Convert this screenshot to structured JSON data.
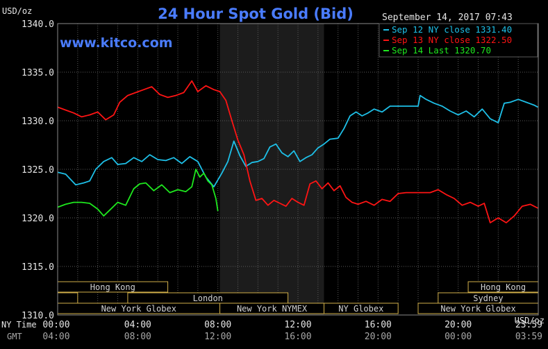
{
  "chart_data": {
    "type": "line",
    "title": "24 Hour Spot Gold (Bid)",
    "brand": "www.kitco.com",
    "unit_top": "USD/oz",
    "unit_bottom": "USD/oz",
    "timestamp": "September 14, 2017 07:43",
    "ylim": [
      1310,
      1340
    ],
    "y_ticks": [
      "1340.0",
      "1335.0",
      "1330.0",
      "1325.0",
      "1320.0",
      "1315.0",
      "1310.0"
    ],
    "y_tick_values": [
      1340,
      1335,
      1330,
      1325,
      1320,
      1315,
      1310
    ],
    "x_row_labels": [
      "NY Time",
      "GMT"
    ],
    "x_ticks_ny": [
      "00:00",
      "04:00",
      "08:00",
      "12:00",
      "16:00",
      "20:00",
      "23:59"
    ],
    "x_ticks_gmt": [
      "04:00",
      "08:00",
      "12:00",
      "16:00",
      "20:00",
      "00:00",
      "03:59"
    ],
    "x_tick_hours": [
      0,
      4,
      8,
      12,
      16,
      20,
      23.983
    ],
    "xlim": [
      0,
      24
    ],
    "highlight_range": [
      8.1,
      13.3
    ],
    "markets": [
      {
        "name": "Hong Kong",
        "start": 0,
        "end": 5.5,
        "row": 0
      },
      {
        "name": "",
        "start": 0,
        "end": 1.0,
        "row": 1
      },
      {
        "name": "London",
        "start": 3.5,
        "end": 11.5,
        "row": 1
      },
      {
        "name": "New York Globex",
        "start": 0,
        "end": 8.1,
        "row": 2
      },
      {
        "name": "New York NYMEX",
        "start": 8.1,
        "end": 13.3,
        "row": 2
      },
      {
        "name": "NY Globex",
        "start": 13.3,
        "end": 17.0,
        "row": 2
      },
      {
        "name": "Hong Kong",
        "start": 20.5,
        "end": 24,
        "row": 0
      },
      {
        "name": "Sydney",
        "start": 19.0,
        "end": 24,
        "row": 1
      },
      {
        "name": "New York Globex",
        "start": 18.0,
        "end": 24,
        "row": 2
      }
    ],
    "series": [
      {
        "name": "Sep 12 NY close 1331.40",
        "color": "#1ec0e8",
        "x": [
          0,
          0.4,
          0.9,
          1.3,
          1.6,
          1.9,
          2.3,
          2.7,
          3.0,
          3.4,
          3.8,
          4.2,
          4.6,
          5.0,
          5.4,
          5.8,
          6.2,
          6.6,
          7.0,
          7.4,
          7.8,
          8.2,
          8.5,
          8.8,
          9.1,
          9.4,
          9.7,
          10.0,
          10.3,
          10.6,
          10.9,
          11.2,
          11.5,
          11.8,
          12.1,
          12.4,
          12.7,
          13.0,
          13.3,
          13.6,
          14.0,
          14.3,
          14.6,
          14.9,
          15.2,
          15.5,
          15.8,
          16.2,
          16.6,
          17.0,
          17.4,
          17.8,
          18.0,
          18.1,
          18.4,
          18.8,
          19.2,
          19.6,
          20.0,
          20.4,
          20.8,
          21.2,
          21.6,
          22.0,
          22.3,
          22.6,
          23.0,
          23.4,
          23.8,
          23.98
        ],
        "values": [
          1324.7,
          1324.5,
          1323.4,
          1323.6,
          1323.8,
          1325.0,
          1325.8,
          1326.2,
          1325.5,
          1325.6,
          1326.2,
          1325.8,
          1326.5,
          1326.0,
          1325.9,
          1326.2,
          1325.6,
          1326.3,
          1325.8,
          1324.2,
          1323.2,
          1324.6,
          1325.8,
          1327.9,
          1326.4,
          1325.3,
          1325.7,
          1325.8,
          1326.1,
          1327.3,
          1327.6,
          1326.7,
          1326.3,
          1326.9,
          1325.8,
          1326.2,
          1326.5,
          1327.2,
          1327.6,
          1328.1,
          1328.2,
          1329.2,
          1330.5,
          1330.9,
          1330.5,
          1330.8,
          1331.2,
          1330.9,
          1331.5,
          1331.5,
          1331.5,
          1331.5,
          1331.5,
          1332.6,
          1332.2,
          1331.8,
          1331.5,
          1331.0,
          1330.6,
          1331.0,
          1330.4,
          1331.2,
          1330.2,
          1329.8,
          1331.8,
          1331.9,
          1332.2,
          1331.9,
          1331.6,
          1331.4
        ]
      },
      {
        "name": "Sep 13 NY close 1322.50",
        "color": "#ff1414",
        "x": [
          0,
          0.4,
          0.8,
          1.2,
          1.6,
          2.0,
          2.4,
          2.8,
          3.1,
          3.5,
          3.9,
          4.3,
          4.7,
          5.1,
          5.5,
          5.9,
          6.3,
          6.7,
          7.0,
          7.4,
          7.8,
          8.1,
          8.4,
          8.7,
          9.0,
          9.3,
          9.6,
          9.9,
          10.2,
          10.5,
          10.8,
          11.1,
          11.4,
          11.7,
          12.0,
          12.3,
          12.6,
          12.9,
          13.2,
          13.5,
          13.8,
          14.1,
          14.4,
          14.7,
          15.0,
          15.4,
          15.8,
          16.2,
          16.6,
          17.0,
          17.4,
          17.8,
          18.2,
          18.6,
          19.0,
          19.4,
          19.8,
          20.2,
          20.6,
          21.0,
          21.3,
          21.6,
          22.0,
          22.4,
          22.8,
          23.2,
          23.6,
          23.98
        ],
        "values": [
          1331.4,
          1331.1,
          1330.8,
          1330.4,
          1330.6,
          1330.9,
          1330.1,
          1330.6,
          1331.9,
          1332.6,
          1332.9,
          1333.2,
          1333.5,
          1332.7,
          1332.4,
          1332.6,
          1332.9,
          1334.1,
          1333.0,
          1333.6,
          1333.2,
          1333.0,
          1332.1,
          1330.0,
          1328.0,
          1326.5,
          1323.8,
          1321.8,
          1322.0,
          1321.3,
          1321.8,
          1321.5,
          1321.2,
          1322.0,
          1321.6,
          1321.3,
          1323.5,
          1323.8,
          1323.0,
          1323.6,
          1322.8,
          1323.3,
          1322.1,
          1321.6,
          1321.4,
          1321.7,
          1321.3,
          1321.9,
          1321.7,
          1322.5,
          1322.6,
          1322.6,
          1322.6,
          1322.6,
          1322.9,
          1322.4,
          1322.0,
          1321.3,
          1321.6,
          1321.2,
          1321.5,
          1319.5,
          1320.0,
          1319.5,
          1320.2,
          1321.2,
          1321.4,
          1321.0
        ]
      },
      {
        "name": "Sep 14 Last 1320.70",
        "color": "#1ee81e",
        "x": [
          0,
          0.4,
          0.8,
          1.2,
          1.6,
          2.0,
          2.3,
          2.6,
          3.0,
          3.4,
          3.8,
          4.1,
          4.4,
          4.8,
          5.2,
          5.6,
          6.0,
          6.4,
          6.7,
          6.9,
          7.1,
          7.3,
          7.5,
          7.7,
          7.9,
          8.0
        ],
        "values": [
          1321.1,
          1321.4,
          1321.6,
          1321.6,
          1321.5,
          1320.9,
          1320.2,
          1320.8,
          1321.6,
          1321.3,
          1323.0,
          1323.5,
          1323.6,
          1322.8,
          1323.4,
          1322.6,
          1322.9,
          1322.7,
          1323.2,
          1325.0,
          1324.2,
          1324.6,
          1323.8,
          1323.4,
          1322.0,
          1320.7
        ]
      }
    ],
    "legend_placement": "top-right",
    "grid": true,
    "colors": {
      "background": "#000000",
      "plot_background": "#000000",
      "highlight": "#1c1c1c",
      "grid": "#5a5a5a",
      "axis_text": "#e6e6e6",
      "gmt_text": "#a8a8a8",
      "title": "#4a7cff",
      "brand": "#4a7cff",
      "market_border": "#d2b04a",
      "market_text": "#d2d2d2"
    }
  }
}
